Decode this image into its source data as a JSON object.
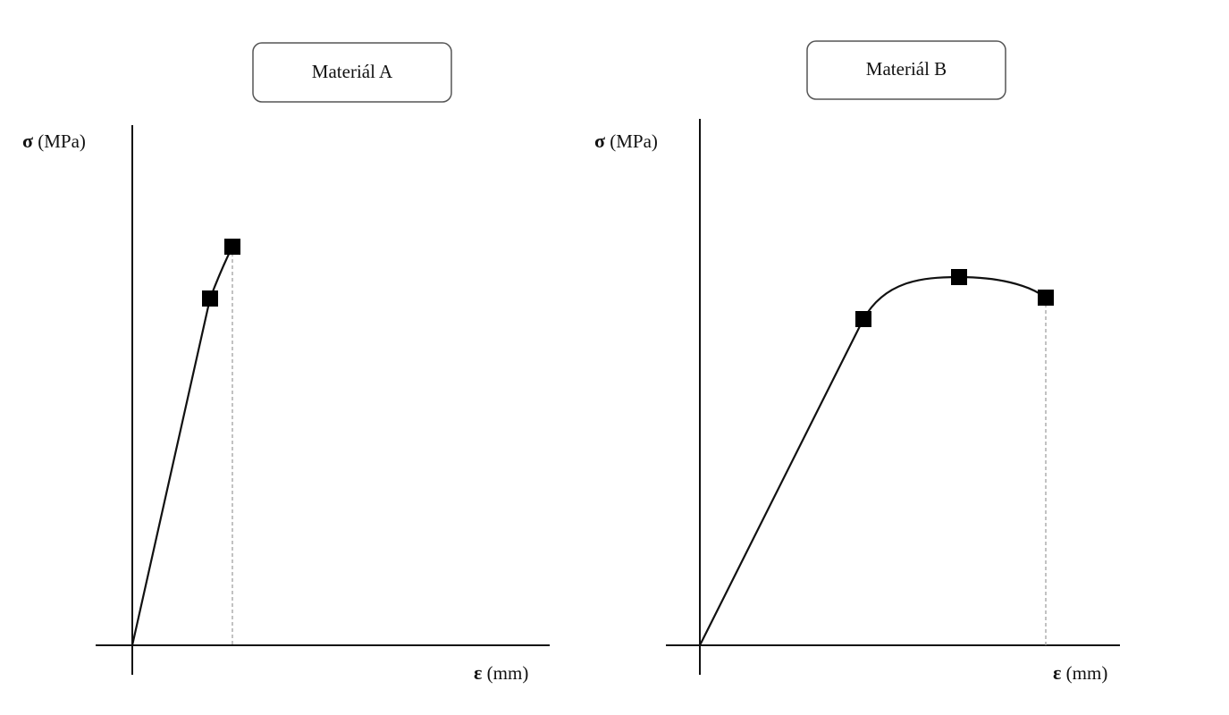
{
  "diagrams": [
    {
      "title": "Materiál A",
      "y_axis": {
        "symbol": "σ",
        "unit": "(MPa)"
      },
      "x_axis": {
        "symbol": "ε",
        "unit": "(mm)"
      }
    },
    {
      "title": "Materiál B",
      "y_axis": {
        "symbol": "σ",
        "unit": "(MPa)"
      },
      "x_axis": {
        "symbol": "ε",
        "unit": "(mm)"
      }
    }
  ]
}
